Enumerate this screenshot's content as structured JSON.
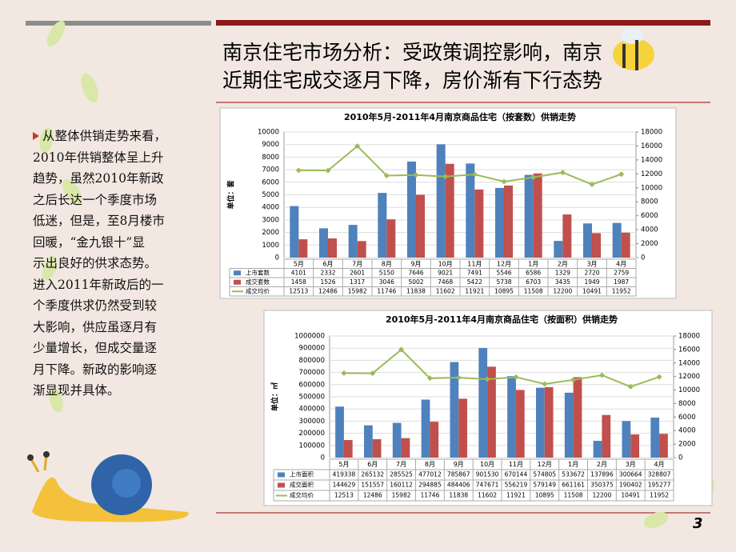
{
  "slide": {
    "title_lines": [
      "南京住宅市场分析：受政策调控影响，南京",
      "近期住宅成交逐月下降，房价渐有下行态势"
    ],
    "body_lines": [
      "从整体供销走势来看，",
      "2010年供销整体呈上升",
      "趋势，虽然2010年新政",
      "之后长达一个季度市场",
      "低迷，但是，至8月楼市",
      "回暖，“金九银十”显",
      "示出良好的供求态势。",
      "进入2011年新政后的一",
      "个季度供求仍然受到较",
      "大影响，供应虽逐月有",
      "少量增长，但成交量逐",
      "月下降。新政的影响逐",
      "渐显现并具体。"
    ],
    "page_number": 3
  },
  "chart_data": [
    {
      "type": "bar",
      "title": "2010年5月-2011年4月南京商品住宅（按套数）供销走势",
      "y_label": "单位：套",
      "categories": [
        "5月",
        "6月",
        "7月",
        "8月",
        "9月",
        "10月",
        "11月",
        "12月",
        "1月",
        "2月",
        "3月",
        "4月"
      ],
      "series": [
        {
          "name": "上市套数",
          "color": "#4f81bd",
          "values": [
            4101,
            2332,
            2601,
            5150,
            7646,
            9021,
            7491,
            5546,
            6586,
            1329,
            2720,
            2759
          ]
        },
        {
          "name": "成交套数",
          "color": "#c0504d",
          "values": [
            1458,
            1526,
            1317,
            3046,
            5002,
            7468,
            5422,
            5738,
            6703,
            3435,
            1949,
            1987
          ]
        },
        {
          "name": "成交均价",
          "color": "#9bbb59",
          "type": "line",
          "axis": "y2",
          "values": [
            12513,
            12486,
            15982,
            11746,
            11838,
            11602,
            11921,
            10895,
            11508,
            12200,
            10491,
            11952
          ]
        }
      ],
      "ylim": [
        0,
        10000
      ],
      "yticks": [
        0,
        1000,
        2000,
        3000,
        4000,
        5000,
        6000,
        7000,
        8000,
        9000,
        10000
      ],
      "y2lim": [
        0,
        18000
      ],
      "y2ticks": [
        0,
        2000,
        4000,
        6000,
        8000,
        10000,
        12000,
        14000,
        16000,
        18000
      ],
      "grid": true,
      "data_table": true
    },
    {
      "type": "bar",
      "title": "2010年5月-2011年4月南京商品住宅（按面积）供销走势",
      "y_label": "单位：㎡",
      "categories": [
        "5月",
        "6月",
        "7月",
        "8月",
        "9月",
        "10月",
        "11月",
        "12月",
        "1月",
        "2月",
        "3月",
        "4月"
      ],
      "series": [
        {
          "name": "上市面积",
          "color": "#4f81bd",
          "values": [
            419338,
            265132,
            285525,
            477012,
            785867,
            901530,
            670144,
            574805,
            533672,
            137896,
            300664,
            328807
          ]
        },
        {
          "name": "成交面积",
          "color": "#c0504d",
          "values": [
            144629,
            151557,
            160112,
            294885,
            484406,
            747671,
            556219,
            579149,
            661161,
            350375,
            190402,
            195277
          ]
        },
        {
          "name": "成交均价",
          "color": "#9bbb59",
          "type": "line",
          "axis": "y2",
          "values": [
            12513,
            12486,
            15982,
            11746,
            11838,
            11602,
            11921,
            10895,
            11508,
            12200,
            10491,
            11952
          ]
        }
      ],
      "ylim": [
        0,
        1000000
      ],
      "yticks": [
        0,
        100000,
        200000,
        300000,
        400000,
        500000,
        600000,
        700000,
        800000,
        900000,
        1000000
      ],
      "y2lim": [
        0,
        18000
      ],
      "y2ticks": [
        0,
        2000,
        4000,
        6000,
        8000,
        10000,
        12000,
        14000,
        16000,
        18000
      ],
      "grid": true,
      "data_table": true
    }
  ]
}
